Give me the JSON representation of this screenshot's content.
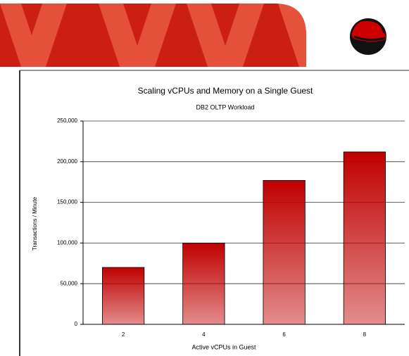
{
  "chart_data": {
    "type": "bar",
    "title": "Scaling vCPUs and Memory on a Single Guest",
    "subtitle": "DB2 OLTP Workload",
    "x_label": "Active vCPUs in Guest",
    "y_label": "Transactions / Minute",
    "categories": [
      "2",
      "4",
      "6",
      "8"
    ],
    "values": [
      70000,
      100000,
      177000,
      212000
    ],
    "color": "#c00000",
    "ylim": [
      0,
      250000
    ],
    "yticks": [
      0,
      {
        "value": 50000,
        "label": "50,000"
      },
      {
        "value": 100000,
        "label": "100,000"
      },
      {
        "value": 150000,
        "label": "150,000"
      },
      {
        "value": 200000,
        "label": "200,000"
      },
      {
        "value": 250000,
        "label": "250,000"
      }
    ],
    "grid": true
  }
}
